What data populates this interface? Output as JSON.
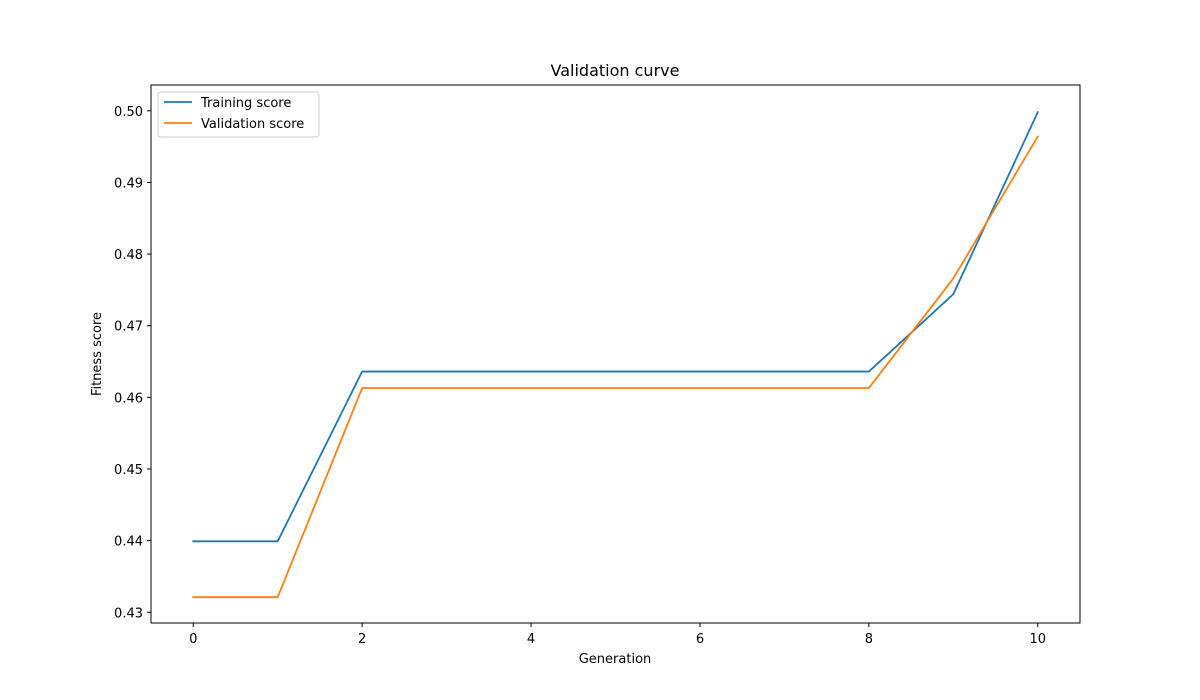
{
  "chart_data": {
    "type": "line",
    "title": "Validation curve",
    "xlabel": "Generation",
    "ylabel": "Fitness score",
    "xlim": [
      -0.5,
      10.5
    ],
    "ylim": [
      0.4285,
      0.5036
    ],
    "xticks": [
      0,
      2,
      4,
      6,
      8,
      10
    ],
    "xtick_labels": [
      "0",
      "2",
      "4",
      "6",
      "8",
      "10"
    ],
    "yticks": [
      0.43,
      0.44,
      0.45,
      0.46,
      0.47,
      0.48,
      0.49,
      0.5
    ],
    "ytick_labels": [
      "0.43",
      "0.44",
      "0.45",
      "0.46",
      "0.47",
      "0.48",
      "0.49",
      "0.50"
    ],
    "grid": false,
    "legend_position": "top-left",
    "x": [
      0,
      1,
      2,
      3,
      4,
      5,
      6,
      7,
      8,
      9,
      10
    ],
    "series": [
      {
        "name": "Training score",
        "color": "#1f77b4",
        "values": [
          0.4399,
          0.4399,
          0.4636,
          0.4636,
          0.4636,
          0.4636,
          0.4636,
          0.4636,
          0.4636,
          0.4744,
          0.4998
        ]
      },
      {
        "name": "Validation score",
        "color": "#ff7f0e",
        "values": [
          0.4321,
          0.4321,
          0.4613,
          0.4613,
          0.4613,
          0.4613,
          0.4613,
          0.4613,
          0.4613,
          0.4766,
          0.4964
        ]
      }
    ]
  }
}
